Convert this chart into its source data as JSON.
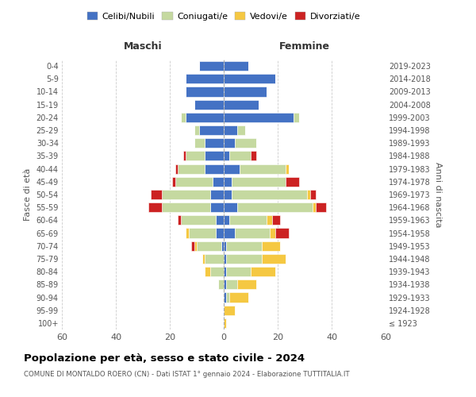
{
  "age_groups": [
    "100+",
    "95-99",
    "90-94",
    "85-89",
    "80-84",
    "75-79",
    "70-74",
    "65-69",
    "60-64",
    "55-59",
    "50-54",
    "45-49",
    "40-44",
    "35-39",
    "30-34",
    "25-29",
    "20-24",
    "15-19",
    "10-14",
    "5-9",
    "0-4"
  ],
  "birth_years": [
    "≤ 1923",
    "1924-1928",
    "1929-1933",
    "1934-1938",
    "1939-1943",
    "1944-1948",
    "1949-1953",
    "1954-1958",
    "1959-1963",
    "1964-1968",
    "1969-1973",
    "1974-1978",
    "1979-1983",
    "1984-1988",
    "1989-1993",
    "1994-1998",
    "1999-2003",
    "2004-2008",
    "2009-2013",
    "2014-2018",
    "2019-2023"
  ],
  "colors": {
    "celibi": "#4472c4",
    "coniugati": "#c5d9a0",
    "vedovi": "#f5c842",
    "divorziati": "#cc2222"
  },
  "maschi": {
    "celibi": [
      0,
      0,
      0,
      0,
      0,
      0,
      1,
      3,
      3,
      5,
      5,
      4,
      7,
      7,
      7,
      9,
      14,
      11,
      14,
      14,
      9
    ],
    "coniugati": [
      0,
      0,
      0,
      2,
      5,
      7,
      9,
      10,
      13,
      18,
      18,
      14,
      10,
      7,
      4,
      2,
      2,
      0,
      0,
      0,
      0
    ],
    "vedovi": [
      0,
      0,
      0,
      0,
      2,
      1,
      1,
      1,
      0,
      0,
      0,
      0,
      0,
      0,
      0,
      0,
      0,
      0,
      0,
      0,
      0
    ],
    "divorziati": [
      0,
      0,
      0,
      0,
      0,
      0,
      1,
      0,
      1,
      5,
      4,
      1,
      1,
      1,
      0,
      0,
      0,
      0,
      0,
      0,
      0
    ]
  },
  "femmine": {
    "celibi": [
      0,
      0,
      1,
      1,
      1,
      1,
      1,
      4,
      2,
      5,
      3,
      3,
      6,
      2,
      4,
      5,
      26,
      13,
      16,
      19,
      9
    ],
    "coniugati": [
      0,
      0,
      1,
      4,
      9,
      13,
      13,
      13,
      14,
      28,
      28,
      20,
      17,
      8,
      8,
      3,
      2,
      0,
      0,
      0,
      0
    ],
    "vedovi": [
      1,
      4,
      7,
      7,
      9,
      9,
      7,
      2,
      2,
      1,
      1,
      0,
      1,
      0,
      0,
      0,
      0,
      0,
      0,
      0,
      0
    ],
    "divorziati": [
      0,
      0,
      0,
      0,
      0,
      0,
      0,
      5,
      3,
      4,
      2,
      5,
      0,
      2,
      0,
      0,
      0,
      0,
      0,
      0,
      0
    ]
  },
  "xlim": 60,
  "title": "Popolazione per età, sesso e stato civile - 2024",
  "subtitle": "COMUNE DI MONTALDO ROERO (CN) - Dati ISTAT 1° gennaio 2024 - Elaborazione TUTTITALIA.IT",
  "ylabel_left": "Fasce di età",
  "ylabel_right": "Anni di nascita",
  "xlabel_left": "Maschi",
  "xlabel_right": "Femmine"
}
